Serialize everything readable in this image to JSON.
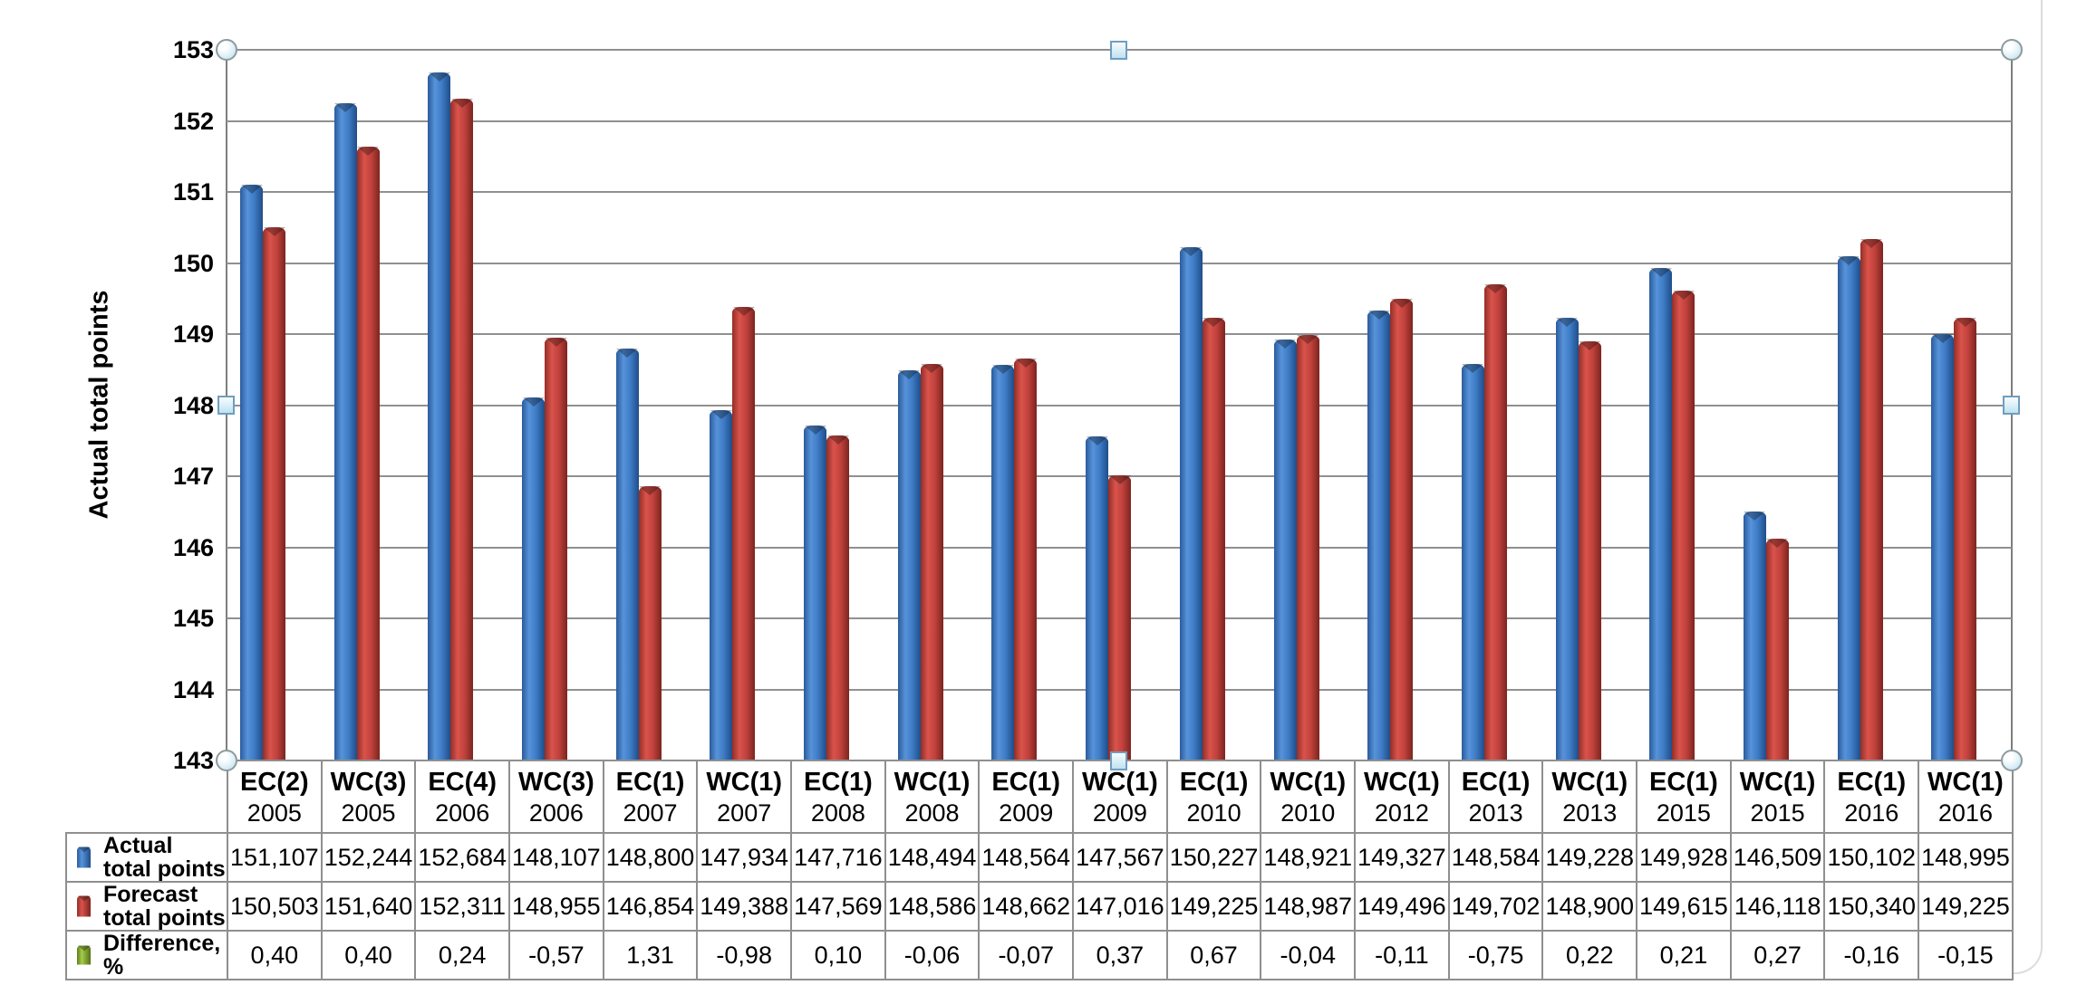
{
  "chart": {
    "ylabel": "Actual total points",
    "y_ticks": [
      "153",
      "152",
      "151",
      "150",
      "149",
      "148",
      "147",
      "146",
      "145",
      "144",
      "143"
    ],
    "colors": {
      "actual_bar": "#3e7cc6",
      "forecast_bar": "#c2423d",
      "difference_key": "#8db33a",
      "gridline": "#909090",
      "handle_fill": "#d8eef7"
    }
  },
  "chart_data": {
    "type": "bar",
    "title": "",
    "xlabel": "",
    "ylabel": "Actual total points",
    "ylim": [
      143,
      153
    ],
    "grid": "horizontal",
    "legend_position": "table-below",
    "categories": [
      "EC(2) 2005",
      "WC(3) 2005",
      "EC(4) 2006",
      "WC(3) 2006",
      "EC(1) 2007",
      "WC(1) 2007",
      "EC(1) 2008",
      "WC(1) 2008",
      "EC(1) 2009",
      "WC(1) 2009",
      "EC(1) 2010",
      "WC(1) 2010",
      "WC(1) 2012",
      "EC(1) 2013",
      "WC(1) 2013",
      "EC(1) 2015",
      "WC(1) 2015",
      "EC(1) 2016",
      "WC(1) 2016"
    ],
    "series": [
      {
        "name": "Actual total points",
        "color": "#3e7cc6",
        "values": [
          151.107,
          152.244,
          152.684,
          148.107,
          148.8,
          147.934,
          147.716,
          148.494,
          148.564,
          147.567,
          150.227,
          148.921,
          149.327,
          148.584,
          149.228,
          149.928,
          146.509,
          150.102,
          148.995
        ]
      },
      {
        "name": "Forecast total points",
        "color": "#c2423d",
        "values": [
          150.503,
          151.64,
          152.311,
          148.955,
          146.854,
          149.388,
          147.569,
          148.586,
          148.662,
          147.016,
          149.225,
          148.987,
          149.496,
          149.702,
          148.9,
          149.615,
          146.118,
          150.34,
          149.225
        ]
      },
      {
        "name": "Difference, %",
        "color": "#8db33a",
        "values": [
          0.4,
          0.4,
          0.24,
          -0.57,
          1.31,
          -0.98,
          0.1,
          -0.06,
          -0.07,
          0.37,
          0.67,
          -0.04,
          -0.11,
          -0.75,
          0.22,
          0.21,
          0.27,
          -0.16,
          -0.15
        ]
      }
    ]
  },
  "table": {
    "columns": [
      {
        "code": "EC(2)",
        "year": "2005"
      },
      {
        "code": "WC(3)",
        "year": "2005"
      },
      {
        "code": "EC(4)",
        "year": "2006"
      },
      {
        "code": "WC(3)",
        "year": "2006"
      },
      {
        "code": "EC(1)",
        "year": "2007"
      },
      {
        "code": "WC(1)",
        "year": "2007"
      },
      {
        "code": "EC(1)",
        "year": "2008"
      },
      {
        "code": "WC(1)",
        "year": "2008"
      },
      {
        "code": "EC(1)",
        "year": "2009"
      },
      {
        "code": "WC(1)",
        "year": "2009"
      },
      {
        "code": "EC(1)",
        "year": "2010"
      },
      {
        "code": "WC(1)",
        "year": "2010"
      },
      {
        "code": "WC(1)",
        "year": "2012"
      },
      {
        "code": "EC(1)",
        "year": "2013"
      },
      {
        "code": "WC(1)",
        "year": "2013"
      },
      {
        "code": "EC(1)",
        "year": "2015"
      },
      {
        "code": "WC(1)",
        "year": "2015"
      },
      {
        "code": "EC(1)",
        "year": "2016"
      },
      {
        "code": "WC(1)",
        "year": "2016"
      }
    ],
    "rows": [
      {
        "label_lines": [
          "Actual",
          "total points"
        ],
        "key": "blue",
        "values": [
          "151,107",
          "152,244",
          "152,684",
          "148,107",
          "148,800",
          "147,934",
          "147,716",
          "148,494",
          "148,564",
          "147,567",
          "150,227",
          "148,921",
          "149,327",
          "148,584",
          "149,228",
          "149,928",
          "146,509",
          "150,102",
          "148,995"
        ]
      },
      {
        "label_lines": [
          "Forecast",
          "total points"
        ],
        "key": "red",
        "values": [
          "150,503",
          "151,640",
          "152,311",
          "148,955",
          "146,854",
          "149,388",
          "147,569",
          "148,586",
          "148,662",
          "147,016",
          "149,225",
          "148,987",
          "149,496",
          "149,702",
          "148,900",
          "149,615",
          "146,118",
          "150,340",
          "149,225"
        ]
      },
      {
        "label_lines": [
          "Difference, %"
        ],
        "key": "green",
        "values": [
          "0,40",
          "0,40",
          "0,24",
          "-0,57",
          "1,31",
          "-0,98",
          "0,10",
          "-0,06",
          "-0,07",
          "0,37",
          "0,67",
          "-0,04",
          "-0,11",
          "-0,75",
          "0,22",
          "0,21",
          "0,27",
          "-0,16",
          "-0,15"
        ]
      }
    ]
  }
}
